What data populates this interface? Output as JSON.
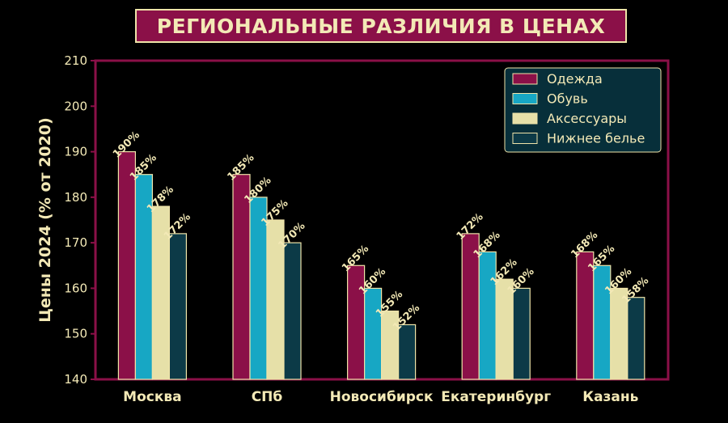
{
  "chart_data": {
    "type": "bar",
    "title": "РЕГИОНАЛЬНЫЕ РАЗЛИЧИЯ В ЦЕНАХ",
    "ylabel": "Цены 2024 (% от 2020)",
    "xlabel": "",
    "categories": [
      "Москва",
      "СПб",
      "Новосибирск",
      "Екатеринбург",
      "Казань"
    ],
    "ylim": [
      140,
      210
    ],
    "yticks": [
      140,
      150,
      160,
      170,
      180,
      190,
      200,
      210
    ],
    "value_suffix": "%",
    "legend_position": "top-right",
    "grid": false,
    "series": [
      {
        "name": "Одежда",
        "color": "#8b1048",
        "values": [
          190,
          185,
          165,
          172,
          168
        ]
      },
      {
        "name": "Обувь",
        "color": "#17a7c4",
        "values": [
          185,
          180,
          160,
          168,
          165
        ]
      },
      {
        "name": "Аксессуары",
        "color": "#e6e0a8",
        "values": [
          178,
          175,
          155,
          162,
          160
        ]
      },
      {
        "name": "Нижнее белье",
        "color": "#0c3a47",
        "values": [
          172,
          170,
          152,
          160,
          158
        ]
      }
    ],
    "colors": {
      "background": "#000000",
      "frame": "#8b1048",
      "text": "#f3e9b6",
      "bar_edge": "#efe3a8",
      "legend_bg": "#072f3a"
    }
  }
}
